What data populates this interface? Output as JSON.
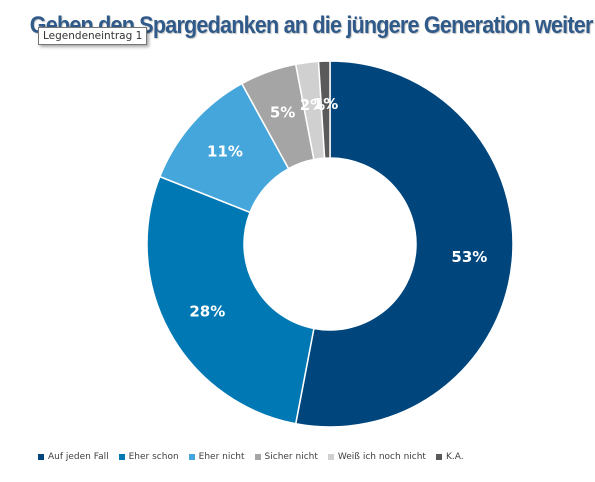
{
  "chart_data": {
    "type": "pie",
    "donut": true,
    "title": "Geben den Spargedanken an die jüngere Generation weiter",
    "legend_position": "bottom",
    "categories": [
      "Auf jeden Fall",
      "Eher schon",
      "Eher nicht",
      "Sicher nicht",
      "Weiß ich noch nicht",
      "K.A."
    ],
    "values": [
      53,
      28,
      11,
      5,
      2,
      1
    ],
    "labels": [
      "53%",
      "28%",
      "11%",
      "5%",
      "2%",
      "1%"
    ],
    "colors": [
      "#00467c",
      "#0078b4",
      "#45a6dc",
      "#a5a5a5",
      "#d0d0d0",
      "#5a5a5a"
    ]
  },
  "tooltip": {
    "text": "Legendeneintrag 1"
  }
}
